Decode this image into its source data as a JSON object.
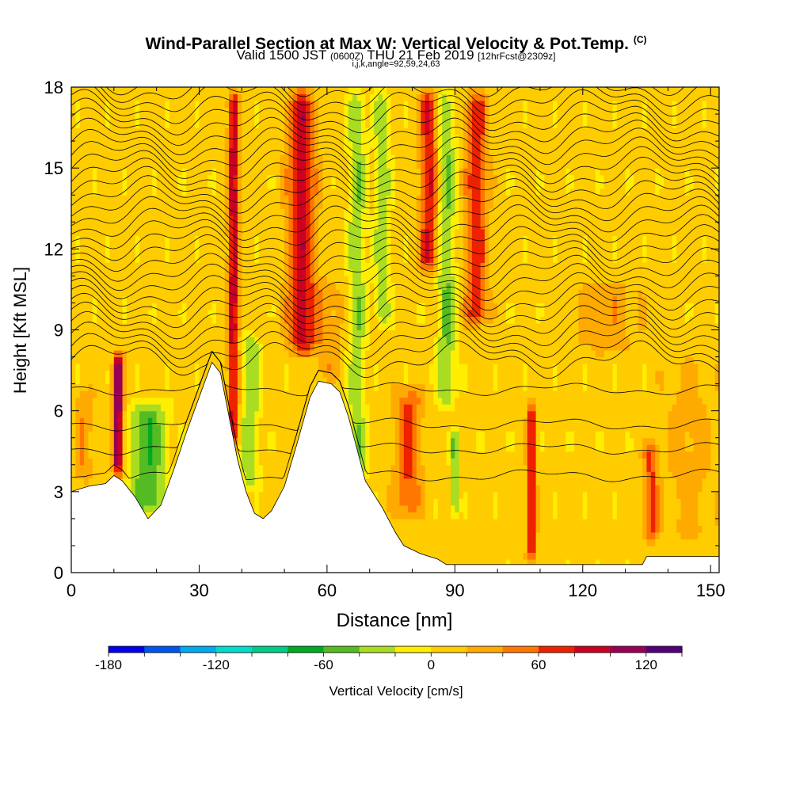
{
  "header": {
    "title": "Wind-Parallel Section at Max W: Vertical Velocity & Pot.Temp.",
    "title_tag": "(C)",
    "valid_prefix": "Valid 1500 JST",
    "valid_z": "(0600Z)",
    "valid_date": "THU 21 Feb 2019",
    "forecast": "[12hrFcst@2309z]",
    "indices": "i,j,k,angle=92,59,24,63"
  },
  "chart_data": {
    "type": "heatmap",
    "xlabel": "Distance [nm]",
    "ylabel": "Height [Kft MSL]",
    "xlim": [
      0,
      152
    ],
    "ylim": [
      0,
      18
    ],
    "x_ticks": [
      "0",
      "30",
      "60",
      "90",
      "120",
      "150"
    ],
    "y_ticks": [
      "0",
      "3",
      "6",
      "9",
      "12",
      "15",
      "18"
    ],
    "x_tick_values": [
      0,
      30,
      60,
      90,
      120,
      150
    ],
    "y_tick_values": [
      0,
      3,
      6,
      9,
      12,
      15,
      18
    ],
    "terrain_kft": [
      [
        0,
        3.0
      ],
      [
        4,
        3.2
      ],
      [
        8,
        3.3
      ],
      [
        10,
        3.6
      ],
      [
        12,
        3.4
      ],
      [
        15,
        2.8
      ],
      [
        18,
        2.0
      ],
      [
        21,
        2.5
      ],
      [
        24,
        3.8
      ],
      [
        27,
        5.2
      ],
      [
        30,
        6.5
      ],
      [
        33,
        7.8
      ],
      [
        35,
        7.4
      ],
      [
        37,
        5.8
      ],
      [
        39,
        4.2
      ],
      [
        41,
        3.0
      ],
      [
        43,
        2.2
      ],
      [
        45,
        2.0
      ],
      [
        47,
        2.3
      ],
      [
        50,
        3.2
      ],
      [
        53,
        4.8
      ],
      [
        56,
        6.5
      ],
      [
        58,
        7.1
      ],
      [
        61,
        7.0
      ],
      [
        63,
        6.7
      ],
      [
        65,
        5.8
      ],
      [
        67,
        4.6
      ],
      [
        69,
        3.4
      ],
      [
        71,
        2.9
      ],
      [
        73,
        2.4
      ],
      [
        76,
        1.5
      ],
      [
        78,
        1.0
      ],
      [
        82,
        0.7
      ],
      [
        86,
        0.5
      ],
      [
        88,
        0.3
      ],
      [
        92,
        0.3
      ],
      [
        100,
        0.3
      ],
      [
        110,
        0.3
      ],
      [
        125,
        0.3
      ],
      [
        134,
        0.3
      ],
      [
        135,
        0.6
      ],
      [
        152,
        0.6
      ]
    ],
    "colorbar": {
      "label": "Vertical Velocity [cm/s]",
      "ticks": [
        "-180",
        "-120",
        "-60",
        "0",
        "60",
        "120"
      ],
      "tick_values": [
        -180,
        -120,
        -60,
        0,
        60,
        120
      ],
      "min": -180,
      "step": 20,
      "colors": [
        "#0000ee",
        "#0055ee",
        "#00aaee",
        "#00ddcc",
        "#00cc88",
        "#00aa22",
        "#55bb22",
        "#aadd22",
        "#ffee00",
        "#ffcc00",
        "#ffaa00",
        "#ff7700",
        "#ee2200",
        "#cc0022",
        "#990055",
        "#550077"
      ]
    },
    "velocity_features": [
      {
        "x": 11,
        "sigma": 0.8,
        "amp": 120,
        "z_from": 3.5,
        "z_to": 8.3
      },
      {
        "x": 18,
        "sigma": 3.0,
        "amp": -65,
        "z_from": 2.0,
        "z_to": 6.5
      },
      {
        "x": 38,
        "sigma": 0.9,
        "amp": 85,
        "z_from": 4.5,
        "z_to": 18
      },
      {
        "x": 42,
        "sigma": 1.5,
        "amp": -45,
        "z_from": 3.0,
        "z_to": 9.0
      },
      {
        "x": 54,
        "sigma": 2.2,
        "amp": 85,
        "z_from": 8.0,
        "z_to": 18
      },
      {
        "x": 67,
        "sigma": 1.4,
        "amp": -45,
        "z_from": 3.0,
        "z_to": 18
      },
      {
        "x": 73,
        "sigma": 1.3,
        "amp": -40,
        "z_from": 9.0,
        "z_to": 18
      },
      {
        "x": 79,
        "sigma": 2.2,
        "amp": 55,
        "z_from": 2.0,
        "z_to": 7.0
      },
      {
        "x": 84,
        "sigma": 1.5,
        "amp": 75,
        "z_from": 11.0,
        "z_to": 18
      },
      {
        "x": 88,
        "sigma": 1.5,
        "amp": -50,
        "z_from": 6.0,
        "z_to": 18
      },
      {
        "x": 90,
        "sigma": 0.6,
        "amp": -60,
        "z_from": 2.0,
        "z_to": 5.5
      },
      {
        "x": 95,
        "sigma": 1.8,
        "amp": 65,
        "z_from": 9.0,
        "z_to": 18
      },
      {
        "x": 108,
        "sigma": 0.7,
        "amp": 80,
        "z_from": 0.3,
        "z_to": 6.5
      },
      {
        "x": 126,
        "sigma": 5.0,
        "amp": 25,
        "z_from": 8.0,
        "z_to": 11.0
      },
      {
        "x": 136,
        "sigma": 1.2,
        "amp": 55,
        "z_from": 1.0,
        "z_to": 5.0
      },
      {
        "x": 3,
        "sigma": 1.5,
        "amp": 30,
        "z_from": 3.2,
        "z_to": 7.0
      },
      {
        "x": 60,
        "sigma": 2.5,
        "amp": 25,
        "z_from": 7.0,
        "z_to": 11.0
      },
      {
        "x": 145,
        "sigma": 4.0,
        "amp": 20,
        "z_from": 1.0,
        "z_to": 8.0
      }
    ]
  }
}
